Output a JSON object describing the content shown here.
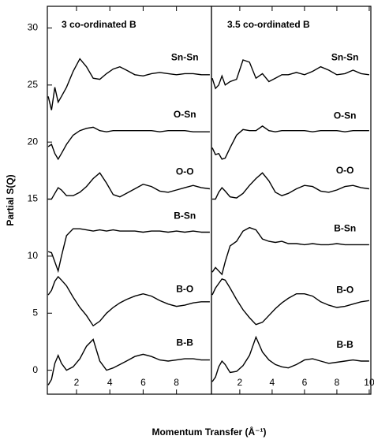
{
  "chart_data": [
    {
      "type": "line",
      "title": "3 co-ordinated B",
      "ylabel": "Partial S(Q)",
      "xlabel": "Momentum Transfer (Å⁻¹)",
      "x": [
        0.3,
        0.5,
        0.7,
        0.9,
        1.1,
        1.4,
        1.8,
        2.2,
        2.6,
        3.0,
        3.4,
        3.8,
        4.2,
        4.6,
        5.0,
        5.5,
        6.0,
        6.5,
        7.0,
        7.5,
        8.0,
        8.5,
        9.0,
        9.5,
        10.0
      ],
      "xlim": [
        0.25,
        10.1
      ],
      "ylim": [
        -2.1,
        31.9
      ],
      "xticks": [
        2,
        4,
        6,
        8
      ],
      "yticks": [
        0,
        5,
        10,
        15,
        20,
        25,
        30
      ],
      "series": [
        {
          "name": "Sn-Sn",
          "color": "#000000",
          "values": [
            24.0,
            22.8,
            24.8,
            23.5,
            24.0,
            24.8,
            26.2,
            27.3,
            26.6,
            25.6,
            25.5,
            26.0,
            26.4,
            26.6,
            26.3,
            25.9,
            25.8,
            26.0,
            26.1,
            26.0,
            25.9,
            26.0,
            26.0,
            25.9,
            25.9
          ]
        },
        {
          "name": "O-Sn",
          "color": "#000000",
          "values": [
            19.6,
            19.8,
            19.0,
            18.5,
            19.0,
            19.8,
            20.6,
            21.0,
            21.2,
            21.3,
            21.0,
            20.9,
            21.0,
            21.0,
            21.0,
            21.0,
            21.0,
            21.0,
            20.9,
            21.0,
            21.0,
            21.0,
            20.9,
            20.9,
            20.9
          ]
        },
        {
          "name": "O-O",
          "color": "#000000",
          "values": [
            15.0,
            15.0,
            15.5,
            16.0,
            15.8,
            15.3,
            15.3,
            15.6,
            16.1,
            16.8,
            17.3,
            16.4,
            15.4,
            15.2,
            15.5,
            15.9,
            16.3,
            16.1,
            15.7,
            15.6,
            15.8,
            16.0,
            16.2,
            16.0,
            15.9
          ]
        },
        {
          "name": "B-Sn",
          "color": "#000000",
          "values": [
            10.4,
            10.3,
            9.5,
            8.7,
            10.0,
            11.8,
            12.4,
            12.4,
            12.3,
            12.2,
            12.3,
            12.2,
            12.3,
            12.2,
            12.2,
            12.2,
            12.1,
            12.2,
            12.2,
            12.1,
            12.2,
            12.1,
            12.2,
            12.1,
            12.1
          ]
        },
        {
          "name": "B-O",
          "color": "#000000",
          "values": [
            6.6,
            7.0,
            7.8,
            8.2,
            7.9,
            7.4,
            6.4,
            5.5,
            4.8,
            3.9,
            4.3,
            5.0,
            5.5,
            5.9,
            6.2,
            6.5,
            6.7,
            6.5,
            6.1,
            5.8,
            5.6,
            5.7,
            5.9,
            6.0,
            6.0
          ]
        },
        {
          "name": "B-B",
          "color": "#000000",
          "values": [
            -1.3,
            -0.8,
            0.6,
            1.3,
            0.6,
            0.0,
            0.3,
            1.0,
            2.1,
            2.7,
            0.8,
            0.0,
            0.2,
            0.5,
            0.8,
            1.2,
            1.4,
            1.2,
            0.9,
            0.8,
            0.9,
            1.0,
            1.0,
            0.9,
            0.9
          ]
        }
      ]
    },
    {
      "type": "line",
      "title": "3.5 co-ordinated B",
      "x": [
        0.3,
        0.5,
        0.7,
        0.9,
        1.1,
        1.4,
        1.8,
        2.2,
        2.6,
        3.0,
        3.4,
        3.8,
        4.2,
        4.6,
        5.0,
        5.5,
        6.0,
        6.5,
        7.0,
        7.5,
        8.0,
        8.5,
        9.0,
        9.5,
        10.0
      ],
      "xlim": [
        0.25,
        10.1
      ],
      "ylim": [
        -2.1,
        31.9
      ],
      "xticks": [
        2,
        4,
        6,
        8,
        10
      ],
      "series": [
        {
          "name": "Sn-Sn",
          "color": "#000000",
          "values": [
            25.6,
            24.7,
            25.0,
            25.8,
            25.0,
            25.3,
            25.5,
            27.2,
            27.0,
            25.6,
            26.0,
            25.3,
            25.6,
            25.9,
            25.9,
            26.1,
            25.9,
            26.2,
            26.6,
            26.3,
            25.9,
            26.0,
            26.3,
            26.0,
            25.9
          ]
        },
        {
          "name": "O-Sn",
          "color": "#000000",
          "values": [
            19.5,
            18.9,
            19.0,
            18.5,
            18.6,
            19.5,
            20.6,
            21.1,
            21.0,
            21.0,
            21.4,
            21.0,
            20.9,
            21.0,
            21.0,
            21.0,
            21.0,
            20.9,
            21.0,
            21.0,
            21.0,
            20.9,
            21.0,
            21.0,
            21.0
          ]
        },
        {
          "name": "O-O",
          "color": "#000000",
          "values": [
            15.0,
            15.0,
            15.6,
            16.0,
            15.7,
            15.2,
            15.1,
            15.5,
            16.2,
            16.8,
            17.3,
            16.6,
            15.6,
            15.3,
            15.5,
            15.9,
            16.2,
            16.1,
            15.7,
            15.6,
            15.8,
            16.1,
            16.2,
            16.0,
            15.9
          ]
        },
        {
          "name": "B-Sn",
          "color": "#000000",
          "values": [
            8.6,
            9.0,
            8.7,
            8.4,
            9.5,
            10.9,
            11.3,
            12.2,
            12.5,
            12.3,
            11.5,
            11.3,
            11.2,
            11.3,
            11.1,
            11.1,
            11.0,
            11.1,
            11.0,
            11.0,
            11.1,
            11.0,
            11.0,
            11.0,
            11.0
          ]
        },
        {
          "name": "B-O",
          "color": "#000000",
          "values": [
            6.6,
            7.2,
            7.6,
            8.0,
            7.9,
            7.2,
            6.2,
            5.3,
            4.6,
            4.0,
            4.2,
            4.8,
            5.4,
            5.9,
            6.3,
            6.7,
            6.7,
            6.5,
            6.0,
            5.7,
            5.5,
            5.6,
            5.8,
            6.0,
            6.1
          ]
        },
        {
          "name": "B-B",
          "color": "#000000",
          "values": [
            -1.0,
            -0.6,
            0.3,
            0.8,
            0.5,
            -0.2,
            -0.1,
            0.4,
            1.3,
            2.9,
            1.6,
            0.9,
            0.5,
            0.3,
            0.2,
            0.5,
            0.9,
            1.0,
            0.8,
            0.6,
            0.7,
            0.8,
            0.9,
            0.8,
            0.8
          ]
        }
      ]
    }
  ]
}
